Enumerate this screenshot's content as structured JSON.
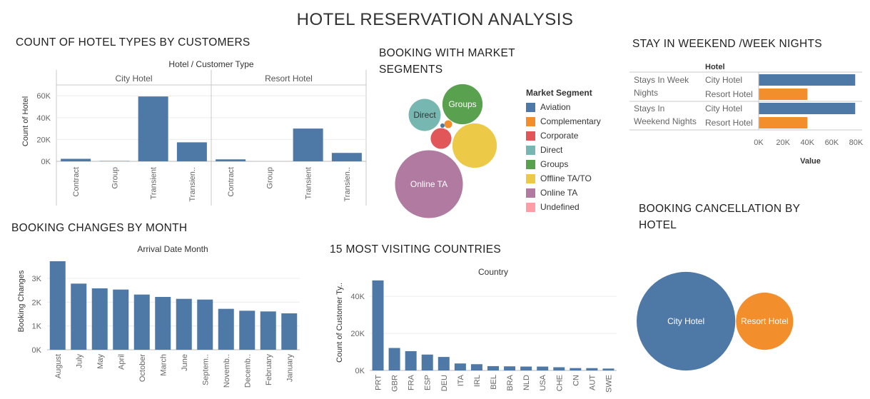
{
  "page_title": "HOTEL RESERVATION ANALYSIS",
  "colors": {
    "bar": "#4e79a7",
    "aviation": "#4e79a7",
    "complementary": "#f28e2b",
    "corporate": "#e15759",
    "direct": "#76b7b2",
    "groups": "#59a14f",
    "offline": "#edc948",
    "online": "#b07aa1",
    "undefined": "#ff9da7",
    "city": "#4e79a7",
    "resort": "#f28e2b"
  },
  "hotel_types": {
    "section_title": "COUNT OF HOTEL TYPES BY CUSTOMERS",
    "chart_data": {
      "type": "bar",
      "title": "Hotel / Customer Type",
      "ylabel": "Count of Hotel",
      "ylim": [
        0,
        68000
      ],
      "yticks": [
        {
          "v": 0,
          "label": "0K"
        },
        {
          "v": 20000,
          "label": "20K"
        },
        {
          "v": 40000,
          "label": "40K"
        },
        {
          "v": 60000,
          "label": "60K"
        }
      ],
      "panels": [
        {
          "name": "City Hotel",
          "categories": [
            "Contract",
            "Group",
            "Transient",
            "Transien.."
          ],
          "values": [
            2300,
            300,
            59400,
            17400
          ]
        },
        {
          "name": "Resort Hotel",
          "categories": [
            "Contract",
            "Group",
            "Transient",
            "Transien.."
          ],
          "values": [
            1800,
            0,
            30000,
            7700
          ]
        }
      ]
    }
  },
  "market_segments": {
    "section_title": "BOOKING WITH MARKET SEGMENTS",
    "legend_title": "Market Segment",
    "chart_data": {
      "type": "bubble",
      "items": [
        {
          "name": "Aviation",
          "value": 235,
          "color": "aviation",
          "label": ""
        },
        {
          "name": "Complementary",
          "value": 743,
          "color": "complementary",
          "label": ""
        },
        {
          "name": "Corporate",
          "value": 5295,
          "color": "corporate",
          "label": ""
        },
        {
          "name": "Direct",
          "value": 12606,
          "color": "direct",
          "label": "Direct"
        },
        {
          "name": "Groups",
          "value": 19811,
          "color": "groups",
          "label": "Groups"
        },
        {
          "name": "Offline TA/TO",
          "value": 24219,
          "color": "offline",
          "label": ""
        },
        {
          "name": "Online TA",
          "value": 56477,
          "color": "online",
          "label": "Online TA"
        },
        {
          "name": "Undefined",
          "value": 2,
          "color": "undefined",
          "label": ""
        }
      ]
    }
  },
  "stays": {
    "section_title": "STAY IN WEEKEND /WEEK NIGHTS",
    "column_header": "Hotel",
    "chart_data": {
      "type": "bar",
      "orientation": "horizontal",
      "xlabel": "Value",
      "xlim": [
        0,
        85000
      ],
      "xticks": [
        {
          "v": 0,
          "label": "0K"
        },
        {
          "v": 20000,
          "label": "20K"
        },
        {
          "v": 40000,
          "label": "40K"
        },
        {
          "v": 60000,
          "label": "60K"
        },
        {
          "v": 80000,
          "label": "80K"
        }
      ],
      "groups": [
        {
          "name": "Stays In Week Nights",
          "rows": [
            {
              "hotel": "City Hotel",
              "value": 79300,
              "color": "city"
            },
            {
              "hotel": "Resort Hotel",
              "value": 40000,
              "color": "resort"
            }
          ]
        },
        {
          "name": "Stays In Weekend Nights",
          "rows": [
            {
              "hotel": "City Hotel",
              "value": 79300,
              "color": "city"
            },
            {
              "hotel": "Resort Hotel",
              "value": 40000,
              "color": "resort"
            }
          ]
        }
      ]
    }
  },
  "booking_changes": {
    "section_title": "BOOKING CHANGES BY MONTH",
    "chart_data": {
      "type": "bar",
      "title": "Arrival Date Month",
      "ylabel": "Booking Changes",
      "ylim": [
        0,
        3900
      ],
      "yticks": [
        {
          "v": 0,
          "label": "0K"
        },
        {
          "v": 1000,
          "label": "1K"
        },
        {
          "v": 2000,
          "label": "2K"
        },
        {
          "v": 3000,
          "label": "3K"
        }
      ],
      "categories": [
        "August",
        "July",
        "May",
        "April",
        "October",
        "March",
        "June",
        "Septem..",
        "Novemb..",
        "Decemb..",
        "February",
        "January"
      ],
      "values": [
        3720,
        2780,
        2580,
        2530,
        2320,
        2220,
        2140,
        2110,
        1720,
        1640,
        1610,
        1530
      ]
    }
  },
  "countries": {
    "section_title": "15 MOST VISITING COUNTRIES",
    "chart_data": {
      "type": "bar",
      "title": "Country",
      "ylabel": "Count of Customer Ty..",
      "ylim": [
        0,
        52000
      ],
      "yticks": [
        {
          "v": 0,
          "label": "0K"
        },
        {
          "v": 20000,
          "label": "20K"
        },
        {
          "v": 40000,
          "label": "40K"
        }
      ],
      "categories": [
        "PRT",
        "GBR",
        "FRA",
        "ESP",
        "DEU",
        "ITA",
        "IRL",
        "BEL",
        "BRA",
        "NLD",
        "USA",
        "CHE",
        "CN",
        "AUT",
        "SWE"
      ],
      "values": [
        48590,
        12129,
        10415,
        8568,
        7287,
        3766,
        3375,
        2342,
        2224,
        2104,
        2097,
        1730,
        1279,
        1263,
        1024
      ]
    }
  },
  "cancellation": {
    "section_title": "BOOKING CANCELLATION BY HOTEL",
    "chart_data": {
      "type": "bubble",
      "items": [
        {
          "name": "City Hotel",
          "value": 33102,
          "color": "city",
          "label": "City Hotel"
        },
        {
          "name": "Resort Hotel",
          "value": 11122,
          "color": "resort",
          "label": "Resort Hotel"
        }
      ]
    }
  }
}
